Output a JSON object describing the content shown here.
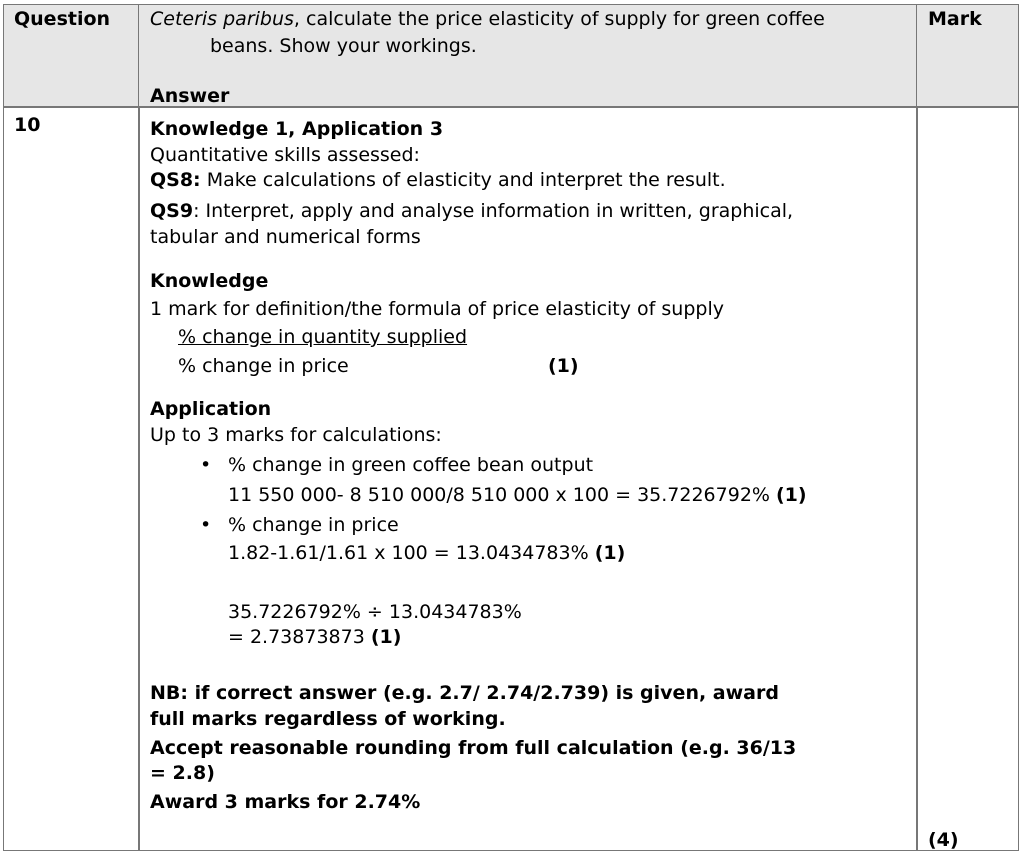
{
  "header": {
    "question_label": "Question",
    "question_text_italic": "Ceteris paribus",
    "question_text_rest": ", calculate the price elasticity of supply for green coffee",
    "question_text_line2": "beans. Show your workings.",
    "answer_label": "Answer",
    "mark_label": "Mark"
  },
  "row": {
    "question_number": "10",
    "ao_title": "Knowledge 1, Application 3",
    "qs_intro": "Quantitative skills assessed:",
    "qs8_code": "QS8:",
    "qs8_text": " Make calculations of elasticity and interpret the result.",
    "qs9_code": "QS9",
    "qs9_text": ": Interpret, apply and analyse information in written, graphical,",
    "qs9_text2": "tabular and numerical forms",
    "knowledge_heading": "Knowledge",
    "knowledge_text": "1 mark for definition/the formula of price elasticity of supply",
    "formula_numerator": "% change in quantity supplied",
    "formula_denominator": "% change in price",
    "formula_mark": "(1)",
    "application_heading": "Application",
    "application_text": "Up to 3 marks for calculations:",
    "bullets": [
      {
        "label": "% change in green coffee bean output",
        "calc": "11 550 000- 8 510 000/8 510 000 x 100 = 35.7226792% ",
        "mark": "(1)"
      },
      {
        "label": "% change in price",
        "calc": "1.82-1.61/1.61 x 100 = 13.0434783% ",
        "mark": "(1)"
      }
    ],
    "division_line": "35.7226792% ÷ 13.0434783%",
    "result_line": "= 2.73873873 ",
    "result_mark": "(1)",
    "nb_line1": "NB: if correct answer (e.g. 2.7/ 2.74/2.739) is given, award",
    "nb_line2": "full marks regardless of working.",
    "accept_line1": "Accept reasonable rounding from full calculation (e.g. 36/13",
    "accept_line2": "= 2.8)",
    "award_line": "Award 3 marks for 2.74%",
    "total_mark": "(4)"
  }
}
